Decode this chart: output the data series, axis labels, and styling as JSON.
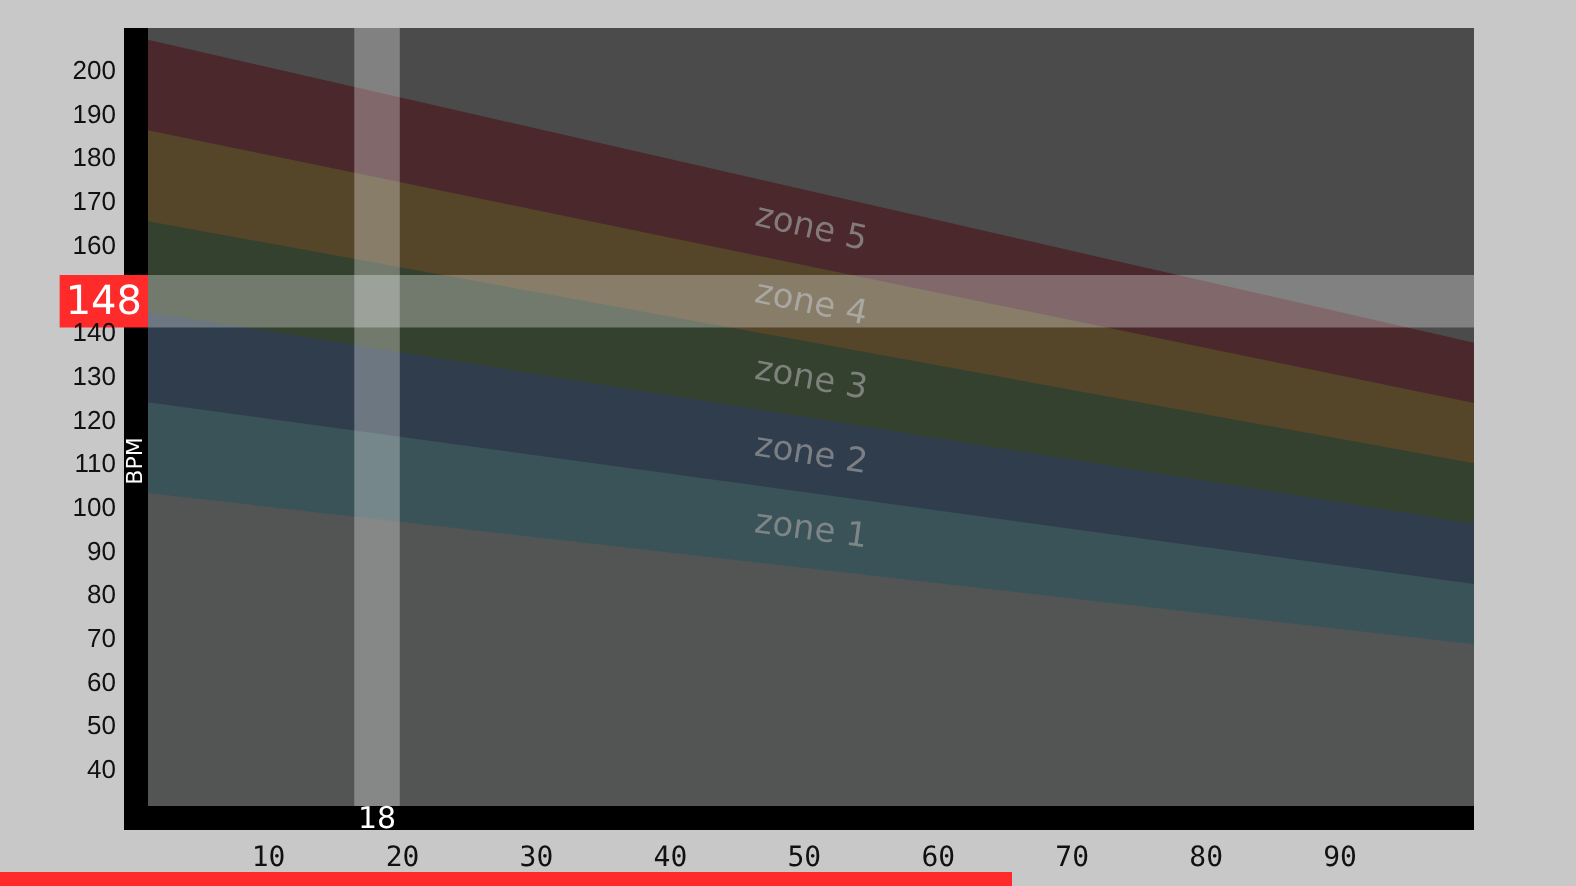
{
  "chart_data": {
    "type": "area",
    "ylabel": "BPM",
    "x": [
      1,
      100
    ],
    "series": [
      {
        "color": "#525553",
        "values": [
          103.6,
          69
        ]
      },
      {
        "name": "zone 1",
        "color": "#3a5358",
        "values": [
          124.4,
          82.8
        ]
      },
      {
        "name": "zone 2",
        "color": "#2f3d4d",
        "values": [
          145,
          96.6
        ]
      },
      {
        "name": "zone 3",
        "color": "#34412f",
        "values": [
          165.8,
          110.4
        ]
      },
      {
        "name": "zone 4",
        "color": "#554529",
        "values": [
          186.6,
          124.2
        ]
      },
      {
        "name": "zone 5",
        "color": "#4b282c",
        "values": [
          207.3,
          138
        ]
      }
    ],
    "xlim": [
      1,
      100
    ],
    "ylim": [
      32,
      210
    ],
    "xticks": [
      10,
      20,
      30,
      40,
      50,
      60,
      70,
      80,
      90
    ],
    "yticks": [
      40,
      50,
      60,
      70,
      80,
      90,
      100,
      110,
      120,
      130,
      140,
      160,
      170,
      180,
      190,
      200
    ],
    "bands": [
      {
        "axis": "x",
        "from": 16.4,
        "to": 19.8,
        "label": "18"
      },
      {
        "axis": "y",
        "from": 141.5,
        "to": 153.5,
        "label": "148"
      }
    ]
  }
}
